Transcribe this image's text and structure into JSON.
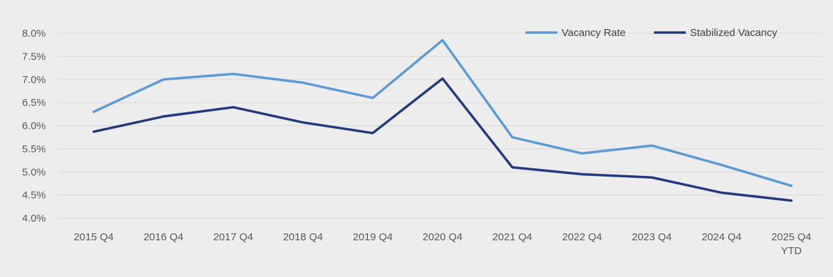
{
  "chart_data": {
    "type": "line",
    "categories": [
      "2015 Q4",
      "2016 Q4",
      "2017 Q4",
      "2018 Q4",
      "2019 Q4",
      "2020 Q4",
      "2021 Q4",
      "2022 Q4",
      "2023 Q4",
      "2024 Q4",
      "2025 Q4\nYTD"
    ],
    "series": [
      {
        "name": "Vacancy Rate",
        "color": "#5b9bd5",
        "values": [
          6.3,
          7.0,
          7.12,
          6.93,
          6.6,
          7.85,
          5.75,
          5.4,
          5.57,
          5.15,
          4.7
        ]
      },
      {
        "name": "Stabilized Vacancy",
        "color": "#23397d",
        "values": [
          5.87,
          6.2,
          6.4,
          6.07,
          5.84,
          7.02,
          5.1,
          4.95,
          4.88,
          4.55,
          4.38
        ]
      }
    ],
    "ylim": [
      4.0,
      8.0
    ],
    "y_ticks": [
      "4.0%",
      "4.5%",
      "5.0%",
      "5.5%",
      "6.0%",
      "6.5%",
      "7.0%",
      "7.5%",
      "8.0%"
    ],
    "title": "",
    "xlabel": "",
    "ylabel": "",
    "grid": true,
    "legend_position": "top-right"
  }
}
